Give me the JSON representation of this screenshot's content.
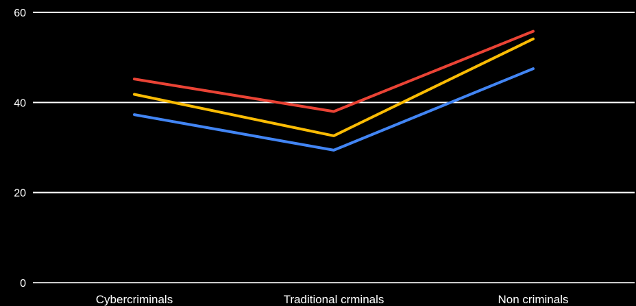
{
  "chart_data": {
    "type": "line",
    "categories": [
      "Cybercriminals",
      "Traditional crminals",
      "Non criminals"
    ],
    "series": [
      {
        "values": [
          45.2,
          38.0,
          55.8
        ],
        "color": "#ea4335"
      },
      {
        "values": [
          41.8,
          32.6,
          54.1
        ],
        "color": "#fbbc04"
      },
      {
        "values": [
          37.3,
          29.4,
          47.5
        ],
        "color": "#4285f4"
      }
    ],
    "ylim": [
      0,
      60
    ],
    "yticks": [
      0,
      20,
      40,
      60
    ],
    "grid": true,
    "background": "#000000",
    "gridline_color": "#ffffff",
    "baseline_color": "#cccccc",
    "title": "",
    "xlabel": "",
    "ylabel": ""
  }
}
